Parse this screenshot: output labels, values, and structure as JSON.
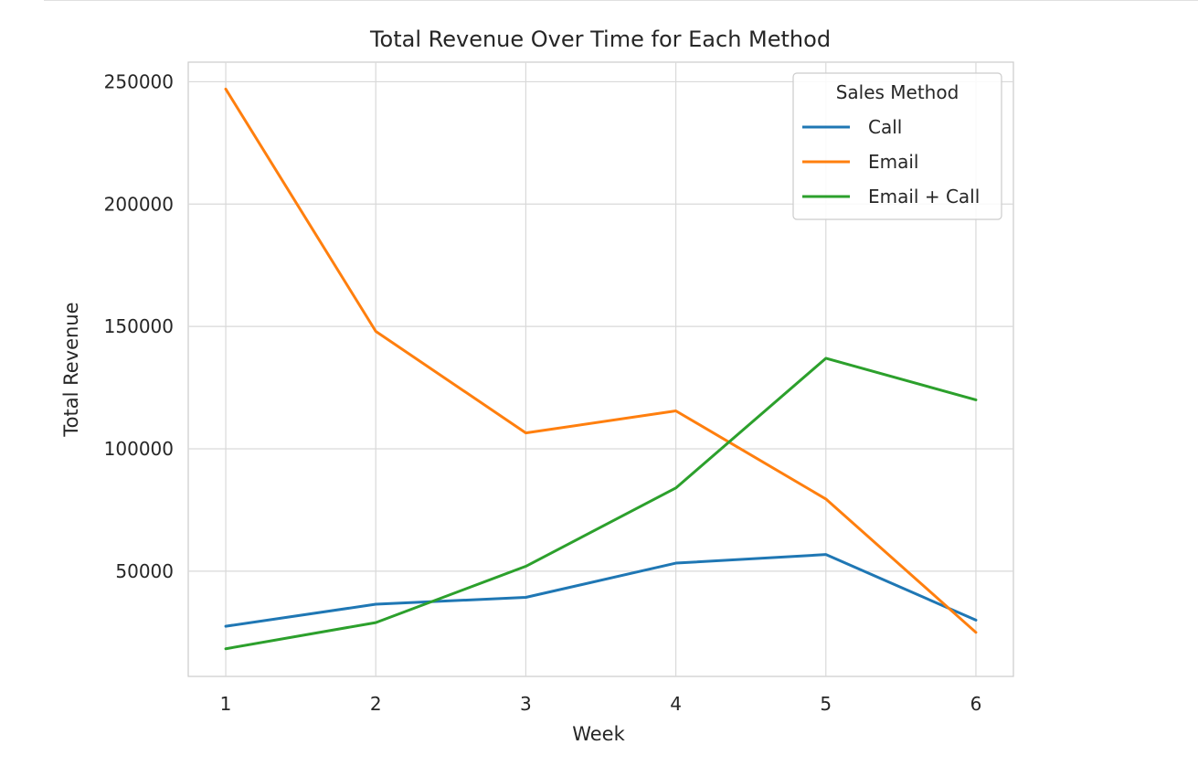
{
  "chart_data": {
    "type": "line",
    "title": "Total Revenue Over Time for Each Method",
    "xlabel": "Week",
    "ylabel": "Total Revenue",
    "x": [
      1,
      2,
      3,
      4,
      5,
      6
    ],
    "xticks": [
      "1",
      "2",
      "3",
      "4",
      "5",
      "6"
    ],
    "yticks": [
      "50000",
      "100000",
      "150000",
      "200000",
      "250000"
    ],
    "xlim": [
      0.75,
      6.25
    ],
    "ylim": [
      7000,
      258000
    ],
    "grid": true,
    "legend": {
      "title": "Sales Method",
      "placement": "top-right"
    },
    "series": [
      {
        "name": "Call",
        "color": "#1f77b4",
        "values": [
          27500,
          36500,
          39300,
          53300,
          56800,
          30000
        ]
      },
      {
        "name": "Email",
        "color": "#ff7f0e",
        "values": [
          247000,
          148000,
          106500,
          115500,
          79500,
          25000
        ]
      },
      {
        "name": "Email + Call",
        "color": "#2ca02c",
        "values": [
          18300,
          29000,
          52000,
          84000,
          137000,
          120000
        ]
      }
    ]
  }
}
